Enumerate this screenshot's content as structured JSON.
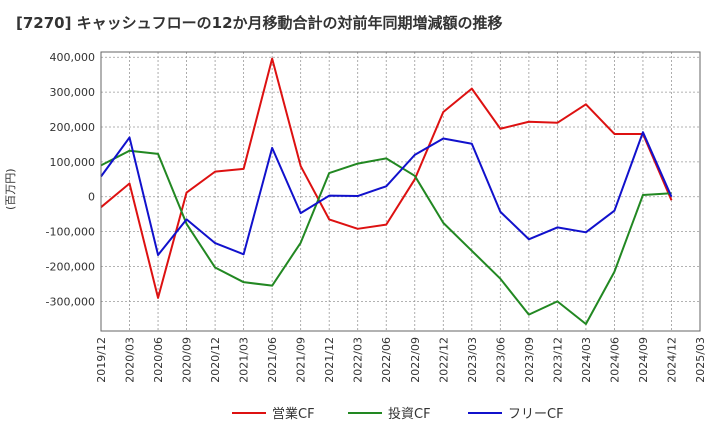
{
  "chart_data": {
    "type": "line",
    "title": "[7270]  キャッシュフローの12か月移動合計の対前年同期増減額の推移",
    "ylabel": "(百万円)",
    "ylim": [
      -385000,
      415000
    ],
    "yticks": [
      400000,
      300000,
      200000,
      100000,
      0,
      -100000,
      -200000,
      -300000
    ],
    "ytick_labels": [
      "400,000",
      "300,000",
      "200,000",
      "100,000",
      "0",
      "-100,000",
      "-200,000",
      "-300,000"
    ],
    "categories": [
      "2019/12",
      "2020/03",
      "2020/06",
      "2020/09",
      "2020/12",
      "2021/03",
      "2021/06",
      "2021/09",
      "2021/12",
      "2022/03",
      "2022/06",
      "2022/09",
      "2022/12",
      "2023/03",
      "2023/06",
      "2023/09",
      "2023/12",
      "2024/03",
      "2024/06",
      "2024/09",
      "2024/12",
      "2025/03"
    ],
    "grid": true,
    "legend_position": "bottom",
    "series": [
      {
        "name": "営業CF",
        "color": "#dd1111",
        "values": [
          -30000,
          38000,
          -290000,
          12000,
          72000,
          80000,
          396000,
          88000,
          -65000,
          -92000,
          -80000,
          50000,
          243000,
          310000,
          195000,
          215000,
          212000,
          265000,
          180000,
          180000,
          -10000,
          null
        ]
      },
      {
        "name": "投資CF",
        "color": "#228822",
        "values": [
          90000,
          132000,
          123000,
          -78000,
          -203000,
          -245000,
          -255000,
          -132000,
          68000,
          95000,
          110000,
          60000,
          -75000,
          -155000,
          -235000,
          -338000,
          -300000,
          -365000,
          -215000,
          5000,
          10000,
          null
        ]
      },
      {
        "name": "フリーCF",
        "color": "#1111cc",
        "values": [
          58000,
          170000,
          -167000,
          -65000,
          -133000,
          -165000,
          140000,
          -47000,
          3000,
          2000,
          30000,
          120000,
          167000,
          152000,
          -43000,
          -122000,
          -88000,
          -102000,
          -40000,
          185000,
          0,
          null
        ]
      }
    ]
  }
}
